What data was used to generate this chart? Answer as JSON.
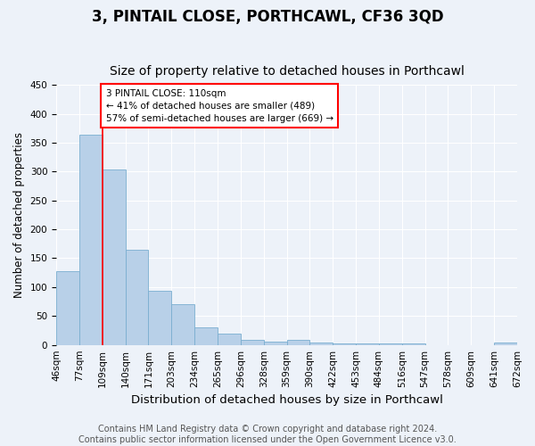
{
  "title1": "3, PINTAIL CLOSE, PORTHCAWL, CF36 3QD",
  "title2": "Size of property relative to detached houses in Porthcawl",
  "xlabel": "Distribution of detached houses by size in Porthcawl",
  "ylabel": "Number of detached properties",
  "bar_values": [
    128,
    363,
    304,
    165,
    93,
    70,
    30,
    20,
    8,
    6,
    9,
    4,
    3,
    3,
    3,
    3,
    0,
    0,
    0,
    4
  ],
  "bar_labels": [
    "46sqm",
    "77sqm",
    "109sqm",
    "140sqm",
    "171sqm",
    "203sqm",
    "234sqm",
    "265sqm",
    "296sqm",
    "328sqm",
    "359sqm",
    "390sqm",
    "422sqm",
    "453sqm",
    "484sqm",
    "516sqm",
    "547sqm",
    "578sqm",
    "609sqm",
    "641sqm",
    "672sqm"
  ],
  "bar_color": "#b8d0e8",
  "bar_edge_color": "#7aaed0",
  "annotation_box_text": "3 PINTAIL CLOSE: 110sqm\n← 41% of detached houses are smaller (489)\n57% of semi-detached houses are larger (669) →",
  "annotation_box_color": "white",
  "annotation_box_edge_color": "red",
  "vline_color": "red",
  "ylim": [
    0,
    450
  ],
  "yticks": [
    0,
    50,
    100,
    150,
    200,
    250,
    300,
    350,
    400,
    450
  ],
  "background_color": "#edf2f9",
  "footer_text": "Contains HM Land Registry data © Crown copyright and database right 2024.\nContains public sector information licensed under the Open Government Licence v3.0.",
  "title1_fontsize": 12,
  "title2_fontsize": 10,
  "xlabel_fontsize": 9.5,
  "ylabel_fontsize": 8.5,
  "tick_fontsize": 7.5,
  "footer_fontsize": 7
}
